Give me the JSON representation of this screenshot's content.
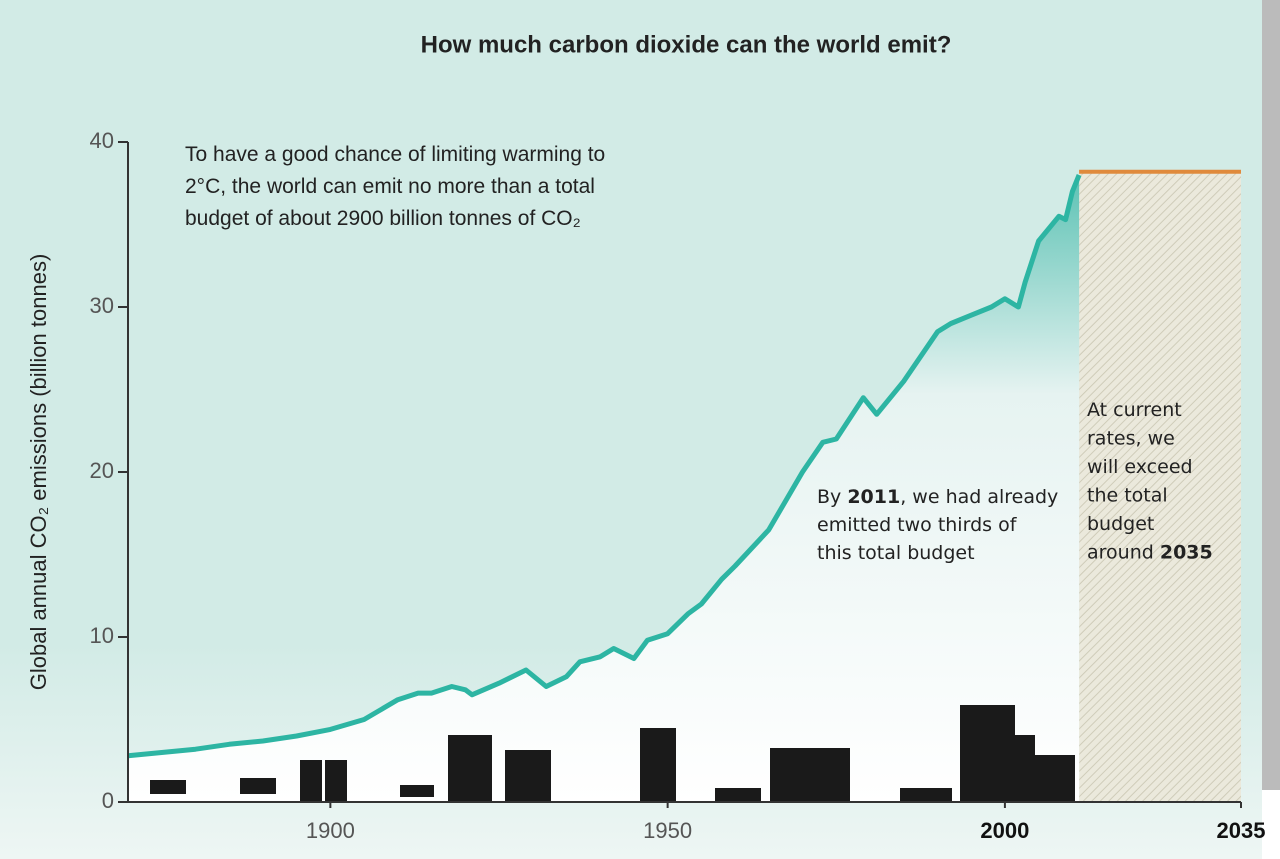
{
  "chart_data": {
    "type": "line",
    "title": "How much carbon dioxide can the world emit?",
    "y_label": "Global annual CO₂ emissions (billion tonnes)",
    "xlim": [
      1870,
      2035
    ],
    "ylim": [
      0,
      40
    ],
    "xticks": [
      1900,
      1950,
      2000,
      2035
    ],
    "xticks_bold": [
      false,
      false,
      true,
      true
    ],
    "yticks": [
      0,
      10,
      20,
      30,
      40
    ],
    "series": [
      {
        "color": "#2db5a3",
        "x": [
          1870,
          1875,
          1880,
          1885,
          1890,
          1895,
          1900,
          1905,
          1910,
          1913,
          1915,
          1918,
          1920,
          1921,
          1925,
          1929,
          1932,
          1935,
          1937,
          1940,
          1942,
          1945,
          1947,
          1950,
          1953,
          1955,
          1958,
          1960,
          1965,
          1970,
          1973,
          1975,
          1979,
          1981,
          1985,
          1990,
          1992,
          1995,
          1998,
          2000,
          2002,
          2003,
          2005,
          2008,
          2009,
          2010,
          2011
        ],
        "values": [
          2.8,
          3.0,
          3.2,
          3.5,
          3.7,
          4.0,
          4.4,
          5.0,
          6.2,
          6.6,
          6.6,
          7.0,
          6.8,
          6.5,
          7.2,
          8.0,
          7.0,
          7.6,
          8.5,
          8.8,
          9.3,
          8.7,
          9.8,
          10.2,
          11.4,
          12.0,
          13.5,
          14.3,
          16.5,
          20.0,
          21.8,
          22.0,
          24.5,
          23.5,
          25.5,
          28.5,
          29.0,
          29.5,
          30.0,
          30.5,
          30.0,
          31.5,
          34.0,
          35.5,
          35.3,
          37.0,
          38.0
        ]
      },
      {
        "color": "#e08a3c",
        "x": [
          2011,
          2035
        ],
        "values": [
          38.2,
          38.2
        ]
      }
    ],
    "annotations": [
      {
        "lines": [
          [
            {
              "text": "To have a good chance of limiting warming to"
            }
          ],
          [
            {
              "text": "2°C, the world can emit no more than a total"
            }
          ],
          [
            {
              "text": "budget of about 2900 billion tonnes of CO₂"
            }
          ]
        ]
      },
      {
        "lines": [
          [
            {
              "text": "By "
            },
            {
              "text": "2011",
              "bold": true
            },
            {
              "text": ", we had already"
            }
          ],
          [
            {
              "text": "emitted two thirds of"
            }
          ],
          [
            {
              "text": "this total budget"
            }
          ]
        ]
      },
      {
        "lines": [
          [
            {
              "text": "At current"
            }
          ],
          [
            {
              "text": "rates, we"
            }
          ],
          [
            {
              "text": "will exceed"
            }
          ],
          [
            {
              "text": "the total"
            }
          ],
          [
            {
              "text": "budget"
            }
          ],
          [
            {
              "text": "around "
            },
            {
              "text": "2035",
              "bold": true
            }
          ]
        ]
      }
    ]
  }
}
